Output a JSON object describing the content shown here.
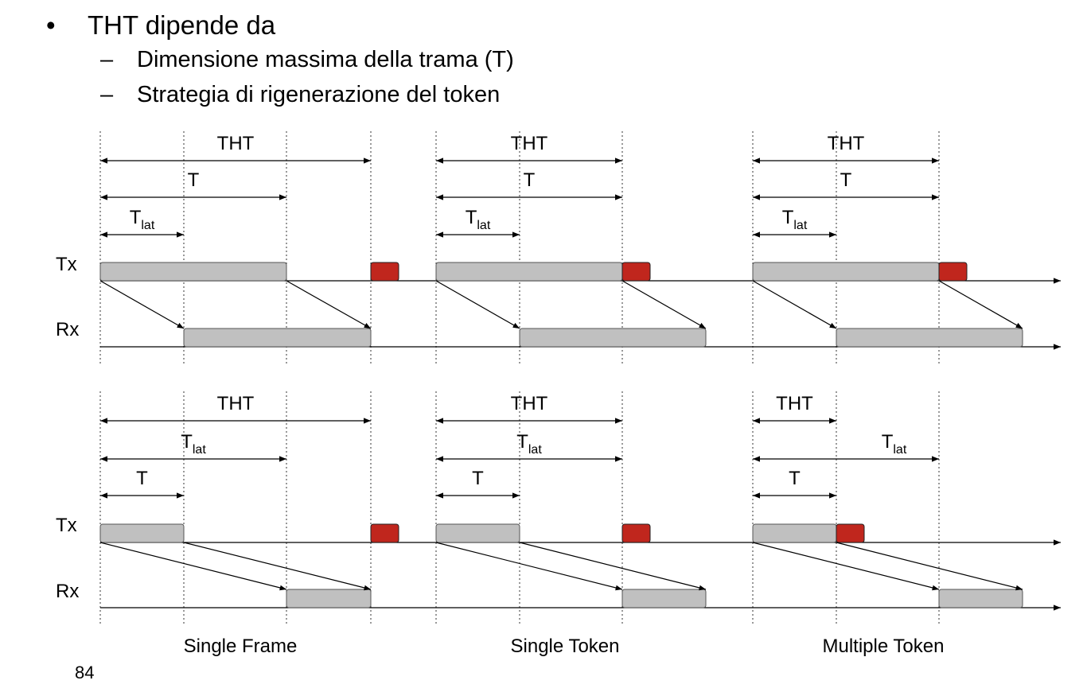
{
  "bullets": {
    "main": {
      "marker": "•",
      "text": "THT dipende da"
    },
    "subs": [
      {
        "marker": "–",
        "text": "Dimensione massima della trama (T)"
      },
      {
        "marker": "–",
        "text": "Strategia di rigenerazione del token"
      }
    ]
  },
  "labels": {
    "tx": "Tx",
    "rx": "Rx",
    "tht": "THT",
    "t": "T",
    "tlat_main": "T",
    "tlat_sub": "lat"
  },
  "strategies": [
    "Single Frame",
    "Single Token",
    "Multiple Token"
  ],
  "colors": {
    "frame": "#c0c0c0",
    "token": "#c0261d",
    "line": "#000000"
  },
  "page_number": "84"
}
